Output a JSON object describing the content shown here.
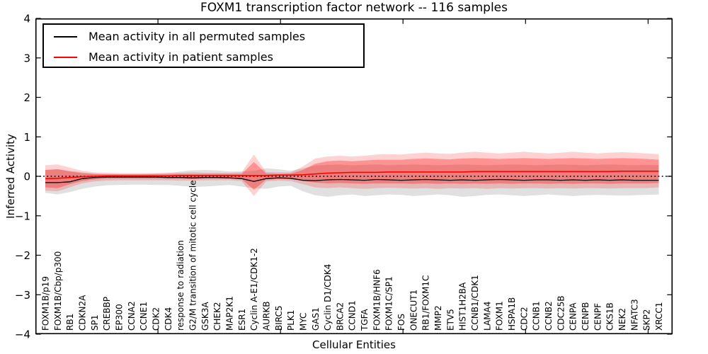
{
  "title": "FOXM1 transcription factor network -- 116 samples",
  "axes": {
    "ylabel": "Inferred Activity",
    "xlabel": "Cellular Entities"
  },
  "legend": {
    "items": [
      {
        "label": "Mean activity in all permuted samples",
        "color": "#000000"
      },
      {
        "label": "Mean activity in patient samples",
        "color": "#ff0000"
      }
    ]
  },
  "chart_data": {
    "type": "line",
    "title": "FOXM1 transcription factor network -- 116 samples",
    "xlabel": "Cellular Entities",
    "ylabel": "Inferred Activity",
    "ylim": [
      -4,
      4
    ],
    "yticks": [
      -4,
      -3,
      -2,
      -1,
      0,
      1,
      2,
      3,
      4
    ],
    "xlim": [
      0,
      52
    ],
    "x_major_ticks": [
      10,
      20,
      30,
      40,
      50
    ],
    "grid": false,
    "legend_position": "upper left",
    "zero_line": 0,
    "categories": [
      "FOXM1B/p19",
      "FOXM1B/Cbp/p300",
      "RB1",
      "CDKN2A",
      "SP1",
      "CREBBP",
      "EP300",
      "CCNA2",
      "CCNE1",
      "CDK2",
      "CDK4",
      "response to radiation",
      "G2/M transition of mitotic cell cycle",
      "GSK3A",
      "CHEK2",
      "MAP2K1",
      "ESR1",
      "Cyclin A-E1/CDK1-2",
      "AURKB",
      "BIRC5",
      "PLK1",
      "MYC",
      "GAS1",
      "Cyclin D1/CDK4",
      "BRCA2",
      "CCND1",
      "TGFA",
      "FOXM1B/HNF6",
      "FOXM1C/SP1",
      "FOS",
      "ONECUT1",
      "RB1/FOXM1C",
      "MMP2",
      "ETV5",
      "HIST1H2BA",
      "CCNB1/CDK1",
      "LAMA4",
      "FOXM1",
      "HSPA1B",
      "CDC2",
      "CCNB1",
      "CCNB2",
      "CDC25B",
      "CENPA",
      "CENPB",
      "CENPF",
      "CKS1B",
      "NEK2",
      "NFATC3",
      "SKP2",
      "XRCC1"
    ],
    "series": [
      {
        "name": "Mean activity in all permuted samples",
        "color": "#000000",
        "values": [
          -0.16,
          -0.16,
          -0.14,
          -0.06,
          -0.03,
          -0.02,
          -0.02,
          -0.02,
          -0.02,
          -0.02,
          -0.03,
          -0.03,
          -0.04,
          -0.03,
          -0.03,
          -0.04,
          -0.06,
          -0.13,
          -0.06,
          -0.04,
          -0.05,
          -0.1,
          -0.11,
          -0.09,
          -0.08,
          -0.09,
          -0.1,
          -0.08,
          -0.09,
          -0.1,
          -0.09,
          -0.08,
          -0.09,
          -0.1,
          -0.09,
          -0.1,
          -0.09,
          -0.08,
          -0.09,
          -0.1,
          -0.09,
          -0.09,
          -0.1,
          -0.09,
          -0.1,
          -0.09,
          -0.1,
          -0.09,
          -0.1,
          -0.1,
          -0.1
        ]
      },
      {
        "name": "Mean activity in patient samples",
        "color": "#ff0000",
        "values": [
          -0.06,
          -0.05,
          -0.03,
          -0.01,
          0.0,
          0.01,
          0.01,
          0.01,
          0.01,
          0.01,
          0.01,
          0.02,
          0.02,
          0.02,
          0.02,
          0.02,
          0.02,
          0.02,
          0.02,
          0.03,
          0.03,
          0.04,
          0.06,
          0.08,
          0.09,
          0.1,
          0.1,
          0.1,
          0.11,
          0.11,
          0.11,
          0.11,
          0.11,
          0.11,
          0.11,
          0.12,
          0.12,
          0.12,
          0.12,
          0.12,
          0.12,
          0.12,
          0.12,
          0.12,
          0.12,
          0.12,
          0.12,
          0.13,
          0.13,
          0.13,
          0.13
        ]
      }
    ],
    "bands": [
      {
        "name": "permuted samples range",
        "color": "#000000",
        "opacity": 0.12,
        "upper": [
          0.16,
          0.18,
          0.14,
          0.1,
          0.07,
          0.06,
          0.06,
          0.06,
          0.06,
          0.07,
          0.08,
          0.12,
          0.15,
          0.16,
          0.15,
          0.12,
          0.12,
          0.14,
          0.2,
          0.18,
          0.14,
          0.2,
          0.27,
          0.29,
          0.3,
          0.28,
          0.29,
          0.3,
          0.28,
          0.29,
          0.3,
          0.29,
          0.28,
          0.29,
          0.3,
          0.29,
          0.28,
          0.29,
          0.3,
          0.29,
          0.28,
          0.29,
          0.3,
          0.29,
          0.28,
          0.29,
          0.3,
          0.29,
          0.28,
          0.29,
          0.28
        ],
        "lower": [
          -0.42,
          -0.46,
          -0.4,
          -0.32,
          -0.26,
          -0.23,
          -0.22,
          -0.21,
          -0.21,
          -0.22,
          -0.22,
          -0.24,
          -0.27,
          -0.26,
          -0.24,
          -0.22,
          -0.26,
          -0.3,
          -0.32,
          -0.26,
          -0.24,
          -0.38,
          -0.48,
          -0.52,
          -0.48,
          -0.46,
          -0.5,
          -0.48,
          -0.46,
          -0.47,
          -0.5,
          -0.48,
          -0.46,
          -0.48,
          -0.52,
          -0.5,
          -0.47,
          -0.46,
          -0.48,
          -0.5,
          -0.48,
          -0.46,
          -0.48,
          -0.5,
          -0.48,
          -0.47,
          -0.48,
          -0.49,
          -0.48,
          -0.47,
          -0.46
        ]
      },
      {
        "name": "patient samples range (outer)",
        "color": "#ff0000",
        "opacity": 0.18,
        "upper": [
          0.28,
          0.3,
          0.22,
          0.14,
          0.1,
          0.09,
          0.08,
          0.08,
          0.08,
          0.08,
          0.09,
          0.09,
          0.1,
          0.09,
          0.09,
          0.09,
          0.1,
          0.55,
          0.11,
          0.1,
          0.1,
          0.25,
          0.45,
          0.5,
          0.52,
          0.5,
          0.52,
          0.55,
          0.56,
          0.55,
          0.58,
          0.6,
          0.58,
          0.57,
          0.6,
          0.62,
          0.6,
          0.58,
          0.6,
          0.62,
          0.6,
          0.58,
          0.6,
          0.62,
          0.6,
          0.58,
          0.6,
          0.61,
          0.6,
          0.58,
          0.56
        ],
        "lower": [
          -0.36,
          -0.38,
          -0.28,
          -0.18,
          -0.13,
          -0.11,
          -0.1,
          -0.1,
          -0.1,
          -0.1,
          -0.1,
          -0.11,
          -0.11,
          -0.1,
          -0.1,
          -0.1,
          -0.12,
          -0.5,
          -0.13,
          -0.11,
          -0.12,
          -0.2,
          -0.28,
          -0.3,
          -0.28,
          -0.3,
          -0.32,
          -0.3,
          -0.29,
          -0.3,
          -0.31,
          -0.3,
          -0.32,
          -0.3,
          -0.31,
          -0.3,
          -0.32,
          -0.3,
          -0.31,
          -0.3,
          -0.3,
          -0.31,
          -0.3,
          -0.31,
          -0.3,
          -0.3,
          -0.31,
          -0.3,
          -0.3,
          -0.3,
          -0.28
        ]
      },
      {
        "name": "patient samples range (inner)",
        "color": "#ff0000",
        "opacity": 0.3,
        "upper": [
          0.16,
          0.18,
          0.12,
          0.08,
          0.06,
          0.05,
          0.05,
          0.05,
          0.05,
          0.05,
          0.05,
          0.06,
          0.06,
          0.06,
          0.06,
          0.06,
          0.06,
          0.36,
          0.07,
          0.06,
          0.07,
          0.16,
          0.32,
          0.38,
          0.4,
          0.38,
          0.4,
          0.42,
          0.42,
          0.42,
          0.44,
          0.45,
          0.44,
          0.43,
          0.45,
          0.46,
          0.45,
          0.44,
          0.45,
          0.46,
          0.45,
          0.44,
          0.45,
          0.46,
          0.45,
          0.44,
          0.45,
          0.46,
          0.45,
          0.44,
          0.42
        ],
        "lower": [
          -0.28,
          -0.3,
          -0.2,
          -0.12,
          -0.08,
          -0.06,
          -0.06,
          -0.06,
          -0.06,
          -0.06,
          -0.06,
          -0.06,
          -0.07,
          -0.06,
          -0.06,
          -0.06,
          -0.07,
          -0.34,
          -0.08,
          -0.07,
          -0.07,
          -0.12,
          -0.16,
          -0.18,
          -0.17,
          -0.18,
          -0.19,
          -0.18,
          -0.18,
          -0.18,
          -0.19,
          -0.18,
          -0.19,
          -0.18,
          -0.19,
          -0.18,
          -0.19,
          -0.18,
          -0.19,
          -0.18,
          -0.18,
          -0.19,
          -0.18,
          -0.19,
          -0.18,
          -0.18,
          -0.19,
          -0.18,
          -0.18,
          -0.18,
          -0.17
        ]
      }
    ]
  }
}
